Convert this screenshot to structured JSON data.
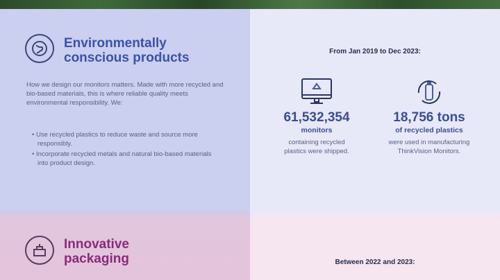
{
  "environment": {
    "title_line1": "Environmentally",
    "title_line2": "conscious products",
    "intro": "How we design our monitors matters. Made with more recycled and bio-based materials, this is where reliable quality meets environmental responsibility. We:",
    "bullets": [
      "Use recycled plastics to reduce waste and source more responsibly.",
      "Incorporate recycled metals and natural bio-based materials into product design."
    ],
    "icon": "globe-leaf-icon",
    "color": "#3b52a8"
  },
  "stats": {
    "range": "From Jan 2019 to Dec 2023:",
    "items": [
      {
        "value": "61,532,354",
        "unit": "monitors",
        "desc": "containing recycled plastics were shipped.",
        "icon": "monitor-recycle-icon"
      },
      {
        "value": "18,756 tons",
        "unit": "of recycled plastics",
        "desc": "were used in manufacturing ThinkVision Monitors.",
        "icon": "bottle-recycle-icon"
      }
    ]
  },
  "packaging": {
    "title_line1": "Innovative",
    "title_line2": "packaging",
    "range": "Between 2022 and 2023:",
    "icon": "package-icon",
    "color": "#8a2a7a"
  }
}
